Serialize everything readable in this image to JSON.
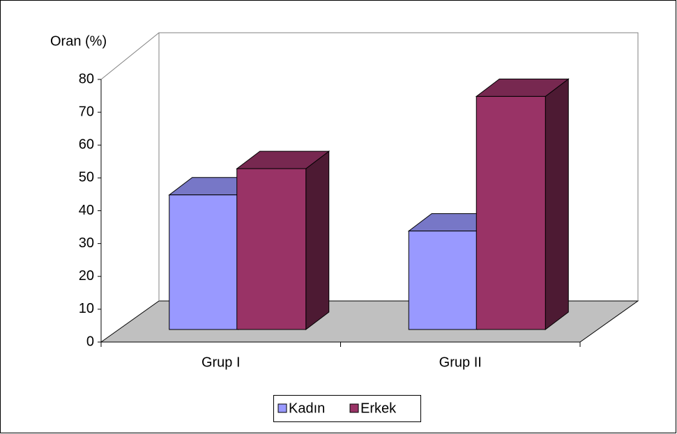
{
  "chart_data": {
    "type": "bar3d",
    "ylabel": "Oran (%)",
    "categories": [
      "Grup I",
      "Grup II"
    ],
    "series": [
      {
        "name": "Kadın",
        "color": "#9999ff",
        "values": [
          41,
          30
        ]
      },
      {
        "name": "Erkek",
        "color": "#993366",
        "values": [
          49,
          71
        ]
      }
    ],
    "ylim": [
      0,
      80
    ],
    "yticks": [
      0,
      10,
      20,
      30,
      40,
      50,
      60,
      70,
      80
    ],
    "grid": false,
    "legend": "bottom"
  }
}
